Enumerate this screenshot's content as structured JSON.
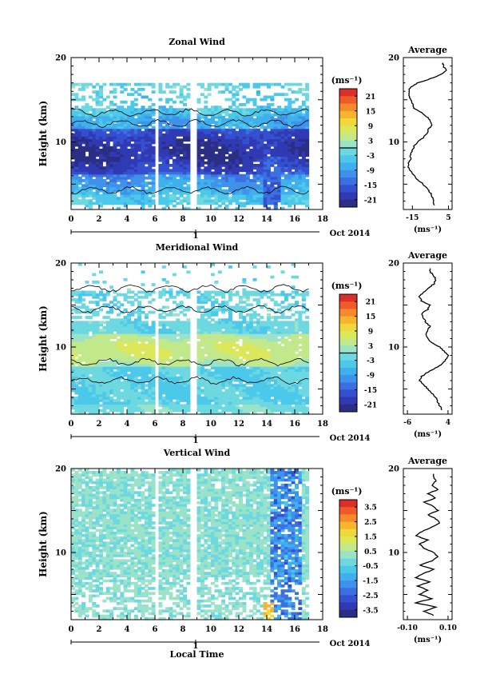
{
  "chart_data": [
    {
      "type": "heatmap",
      "title": "Zonal Wind",
      "ylabel": "Height (km)",
      "xlabel": "",
      "xlim": [
        0,
        18
      ],
      "ylim": [
        2,
        20
      ],
      "x_ticks": [
        "0",
        "2",
        "4",
        "6",
        "8",
        "10",
        "12",
        "14",
        "16",
        "18"
      ],
      "y_ticks": [
        "10",
        "20"
      ],
      "date_label": "Oct 2014",
      "day_label": "1",
      "colorbar": {
        "unit": "(ms⁻¹)",
        "ticks": [
          "21",
          "15",
          "9",
          "3",
          "-3",
          "-9",
          "-15",
          "-21"
        ],
        "range": [
          -24,
          24
        ],
        "zero_line": true
      },
      "data_gaps_local_time": [
        [
          5.9,
          6.3
        ],
        [
          8.6,
          8.9
        ],
        [
          17.0,
          18.0
        ]
      ],
      "profile": {
        "title": "Average",
        "unit": "(ms⁻¹)",
        "xlim": [
          -20,
          7
        ],
        "x_ticks": [
          "-15",
          "5"
        ],
        "y_ticks": [
          "10",
          "20"
        ],
        "heights": [
          2.5,
          3,
          3.5,
          4,
          4.5,
          5,
          5.5,
          6,
          6.5,
          7,
          7.5,
          8,
          8.5,
          9,
          9.5,
          10,
          10.5,
          11,
          11.5,
          12,
          12.5,
          13,
          13.5,
          14,
          14.5,
          15,
          15.5,
          16,
          16.5,
          17,
          17.5,
          18,
          18.5,
          19
        ],
        "values": [
          -3,
          -3,
          -4,
          -5,
          -7,
          -9,
          -12,
          -14,
          -16,
          -17,
          -17,
          -16,
          -16,
          -15,
          -14,
          -12,
          -9,
          -7,
          -6,
          -4,
          -5,
          -7,
          -10,
          -14,
          -15,
          -16,
          -17,
          -17,
          -16,
          -12,
          -5,
          1,
          4,
          2
        ]
      }
    },
    {
      "type": "heatmap",
      "title": "Meridional Wind",
      "ylabel": "Height (km)",
      "xlabel": "",
      "xlim": [
        0,
        18
      ],
      "ylim": [
        2,
        20
      ],
      "x_ticks": [
        "0",
        "2",
        "4",
        "6",
        "8",
        "10",
        "12",
        "14",
        "16",
        "18"
      ],
      "y_ticks": [
        "10",
        "20"
      ],
      "date_label": "Oct 2014",
      "day_label": "1",
      "colorbar": {
        "unit": "(ms⁻¹)",
        "ticks": [
          "21",
          "15",
          "9",
          "3",
          "-3",
          "-9",
          "-15",
          "-21"
        ],
        "range": [
          -24,
          24
        ],
        "zero_line": true
      },
      "data_gaps_local_time": [
        [
          5.9,
          6.3
        ],
        [
          8.6,
          8.9
        ],
        [
          17.0,
          18.0
        ]
      ],
      "profile": {
        "title": "Average",
        "unit": "(ms⁻¹)",
        "xlim": [
          -7,
          5
        ],
        "x_ticks": [
          "-6",
          "4"
        ],
        "y_ticks": [
          "10",
          "20"
        ],
        "heights": [
          2.5,
          3,
          3.5,
          4,
          4.5,
          5,
          5.5,
          6,
          6.5,
          7,
          7.5,
          8,
          8.5,
          9,
          9.5,
          10,
          10.5,
          11,
          11.5,
          12,
          12.5,
          13,
          13.5,
          14,
          14.5,
          15,
          15.5,
          16,
          16.5,
          17,
          17.5,
          18,
          18.5,
          19
        ],
        "values": [
          2.5,
          2,
          1.5,
          1,
          0,
          -1,
          -2,
          -3,
          -2.5,
          -1,
          1,
          2.5,
          3.5,
          4,
          3,
          2,
          0,
          -1,
          -1.5,
          -1,
          -0.5,
          -1.5,
          -2,
          -2.5,
          -1,
          -0.5,
          -2.5,
          -3,
          -2,
          -1,
          0.5,
          1,
          0.5,
          -0.5
        ]
      }
    },
    {
      "type": "heatmap",
      "title": "Vertical Wind",
      "ylabel": "Height (km)",
      "xlabel": "Local Time",
      "xlim": [
        0,
        18
      ],
      "ylim": [
        2,
        20
      ],
      "x_ticks": [
        "0",
        "2",
        "4",
        "6",
        "8",
        "10",
        "12",
        "14",
        "16",
        "18"
      ],
      "y_ticks": [
        "10",
        "20"
      ],
      "date_label": "Oct 2014",
      "day_label": "1",
      "colorbar": {
        "unit": "(ms⁻¹)",
        "ticks": [
          "3.5",
          "2.5",
          "1.5",
          "0.5",
          "-0.5",
          "-1.5",
          "-2.5",
          "-3.5"
        ],
        "range": [
          -4,
          4
        ],
        "zero_line": false
      },
      "data_gaps_local_time": [
        [
          5.9,
          6.3
        ],
        [
          8.6,
          8.9
        ],
        [
          17.0,
          18.0
        ]
      ],
      "profile": {
        "title": "Average",
        "unit": "(ms⁻¹)",
        "xlim": [
          -0.12,
          0.12
        ],
        "x_ticks": [
          "-0.10",
          "0.10"
        ],
        "y_ticks": [
          "10",
          "20"
        ],
        "heights": [
          2.5,
          3,
          3.5,
          4,
          4.5,
          5,
          5.5,
          6,
          6.5,
          7,
          7.5,
          8,
          8.5,
          9,
          9.5,
          10,
          10.5,
          11,
          11.5,
          12,
          12.5,
          13,
          13.5,
          14,
          14.5,
          15,
          15.5,
          16,
          16.5,
          17,
          17.5,
          18,
          18.5,
          19
        ],
        "values": [
          0.03,
          -0.02,
          0.04,
          -0.06,
          0.02,
          -0.04,
          0.0,
          -0.05,
          0.01,
          -0.06,
          -0.02,
          0.03,
          -0.04,
          0.02,
          0.05,
          0.03,
          -0.02,
          -0.04,
          0.0,
          -0.06,
          -0.03,
          0.02,
          0.06,
          0.04,
          0.0,
          0.05,
          0.03,
          -0.02,
          0.04,
          0.0,
          0.05,
          0.02,
          0.04,
          0.03
        ]
      }
    }
  ]
}
